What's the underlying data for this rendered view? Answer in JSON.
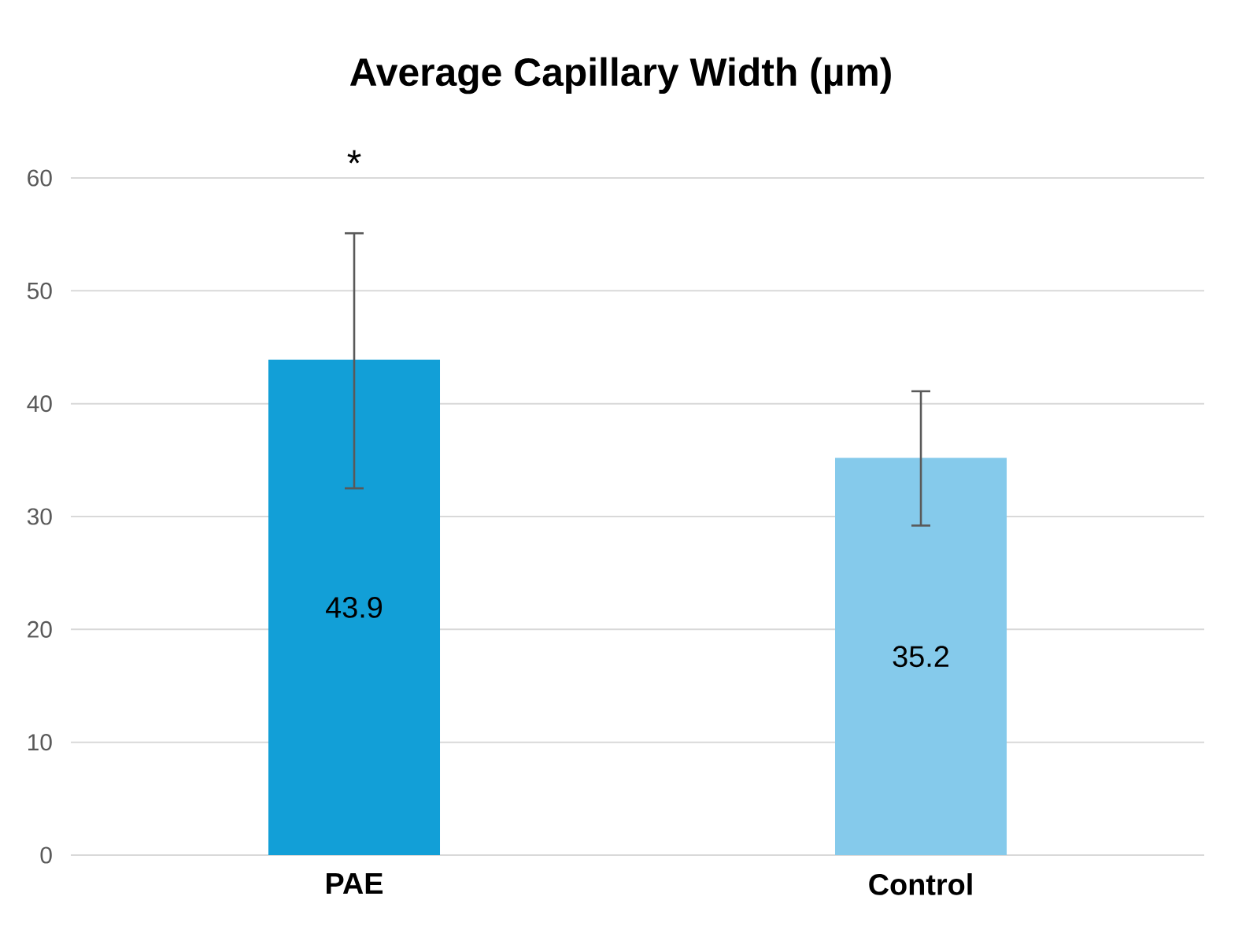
{
  "chart_data": {
    "type": "bar",
    "title": "Average Capillary Width (µm)",
    "categories": [
      "PAE",
      "Control"
    ],
    "values": [
      43.9,
      35.2
    ],
    "colors": [
      "#129fd7",
      "#85caeb"
    ],
    "errors": [
      [
        32.5,
        55.1
      ],
      [
        29.2,
        41.1
      ]
    ],
    "data_labels": true,
    "ylim": [
      0,
      60
    ],
    "yticks": [
      0,
      10,
      20,
      30,
      40,
      50,
      60
    ],
    "grid": "y",
    "annotations": [
      "*"
    ]
  }
}
